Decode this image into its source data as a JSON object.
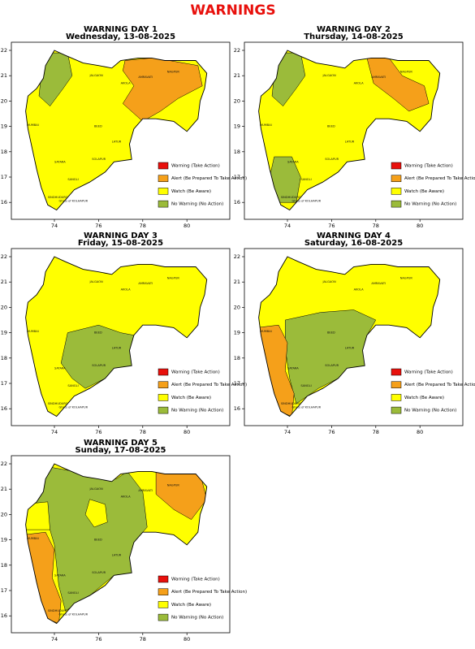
{
  "title": "WARNINGS",
  "axes": {
    "xticks": [
      74,
      76,
      78,
      80
    ],
    "yticks": [
      16,
      17,
      18,
      19,
      20,
      21,
      22
    ]
  },
  "legend": [
    {
      "label": "Warning (Take Action)",
      "color": "#e8100c"
    },
    {
      "label": "Alert (Be Prepared To Take Action)",
      "color": "#f5a01a"
    },
    {
      "label": "Watch (Be Aware)",
      "color": "#ffff00"
    },
    {
      "label": "No Warning (No Action)",
      "color": "#9bbb3a"
    }
  ],
  "district_labels": [
    "MUMBAI",
    "JALGAON",
    "NAGPUR",
    "AMRAVATI",
    "AKOLA",
    "BEED",
    "LATUR",
    "SATARA",
    "SANGLI",
    "SOLAPUR",
    "SINDHUDURG",
    "Ghats of KOLHAPUR"
  ],
  "panels": [
    {
      "title": "WARNING DAY 1",
      "subtitle": "Wednesday, 13-08-2025"
    },
    {
      "title": "WARNING DAY 2",
      "subtitle": "Thursday, 14-08-2025"
    },
    {
      "title": "WARNING DAY 3",
      "subtitle": "Friday, 15-08-2025"
    },
    {
      "title": "WARNING DAY 4",
      "subtitle": "Saturday, 16-08-2025"
    },
    {
      "title": "WARNING DAY 5",
      "subtitle": "Sunday, 17-08-2025"
    }
  ]
}
